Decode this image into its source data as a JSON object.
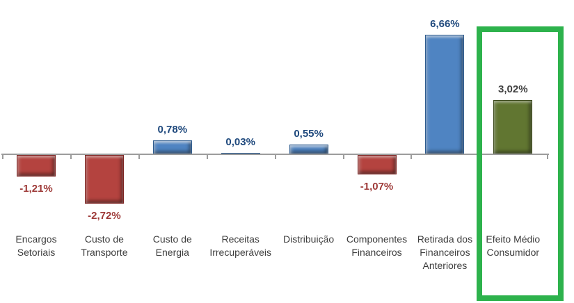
{
  "chart_data": {
    "type": "bar",
    "title": "",
    "unit": "%",
    "grid": false,
    "legend": false,
    "value_axis_visible": false,
    "axis_range_estimate": [
      -3.5,
      7.5
    ],
    "categories": [
      "Encargos Setoriais",
      "Custo de Transporte",
      "Custo de Energia",
      "Receitas Irrecuperáveis",
      "Distribuição",
      "Componentes Financeiros",
      "Retirada dos Financeiros Anteriores",
      "Efeito Médio Consumidor"
    ],
    "values": [
      -1.21,
      -2.72,
      0.78,
      0.03,
      0.55,
      -1.07,
      6.66,
      3.02
    ],
    "data_labels": [
      "-1,21%",
      "-2,72%",
      "0,78%",
      "0,03%",
      "0,55%",
      "-1,07%",
      "6,66%",
      "3,02%"
    ],
    "bars": [
      {
        "id": "encargos-setoriais",
        "label_lines": [
          "Encargos",
          "Setoriais"
        ],
        "value": -1.21,
        "data_label": "-1,21%",
        "role": "negative"
      },
      {
        "id": "custo-de-transporte",
        "label_lines": [
          "Custo de",
          "Transporte"
        ],
        "value": -2.72,
        "data_label": "-2,72%",
        "role": "negative"
      },
      {
        "id": "custo-de-energia",
        "label_lines": [
          "Custo de",
          "Energia"
        ],
        "value": 0.78,
        "data_label": "0,78%",
        "role": "positive"
      },
      {
        "id": "receitas-irrecuperaveis",
        "label_lines": [
          "Receitas",
          "Irrecuperáveis"
        ],
        "value": 0.03,
        "data_label": "0,03%",
        "role": "positive"
      },
      {
        "id": "distribuicao",
        "label_lines": [
          "Distribuição"
        ],
        "value": 0.55,
        "data_label": "0,55%",
        "role": "positive"
      },
      {
        "id": "componentes-financeiros",
        "label_lines": [
          "Componentes",
          "Financeiros"
        ],
        "value": -1.07,
        "data_label": "-1,07%",
        "role": "negative"
      },
      {
        "id": "retirada-dos-financeiros-anteriores",
        "label_lines": [
          "Retirada dos",
          "Financeiros",
          "Anteriores"
        ],
        "value": 6.66,
        "data_label": "6,66%",
        "role": "positive"
      },
      {
        "id": "efeito-medio-consumidor",
        "label_lines": [
          "Efeito Médio",
          "Consumidor"
        ],
        "value": 3.02,
        "data_label": "3,02%",
        "role": "total"
      }
    ],
    "colors": {
      "positive_bar": "#4F84C2",
      "negative_bar": "#B4433F",
      "total_bar": "#617631",
      "positive_label": "#1F497D",
      "negative_label": "#9E3A38",
      "total_label": "#404040",
      "category_label": "#3D3D3D",
      "axis": "#9C9C9C",
      "highlight_box": "#2DB24C"
    },
    "highlight": {
      "category": "Efeito Médio Consumidor",
      "style": "green rectangle outline around last bar and its labels"
    }
  }
}
